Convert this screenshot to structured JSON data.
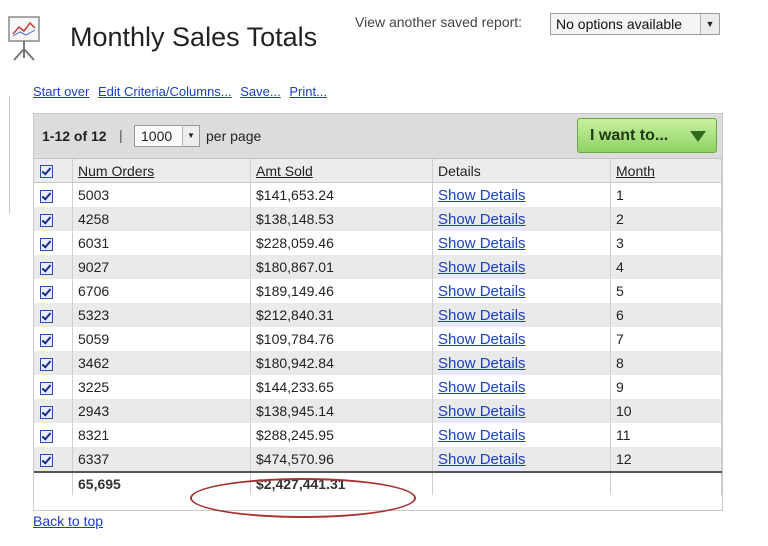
{
  "header": {
    "title": "Monthly Sales Totals",
    "saved_report_label": "View another saved report:",
    "saved_report_select": "No options available"
  },
  "actions": {
    "start_over": "Start over",
    "edit_criteria": "Edit Criteria/Columns...",
    "save": "Save...",
    "print": "Print..."
  },
  "toolbar": {
    "range": "1-12 of 12",
    "separator": "|",
    "per_page_value": "1000",
    "per_page_label": "per page",
    "i_want_to": "I want to..."
  },
  "table": {
    "columns": [
      "Num Orders",
      "Amt Sold",
      "Details",
      "Month"
    ],
    "rows": [
      {
        "orders": "5003",
        "amount": "$141,653.24",
        "details": "Show Details",
        "month": "1"
      },
      {
        "orders": "4258",
        "amount": "$138,148.53",
        "details": "Show Details",
        "month": "2"
      },
      {
        "orders": "6031",
        "amount": "$228,059.46",
        "details": "Show Details",
        "month": "3"
      },
      {
        "orders": "9027",
        "amount": "$180,867.01",
        "details": "Show Details",
        "month": "4"
      },
      {
        "orders": "6706",
        "amount": "$189,149.46",
        "details": "Show Details",
        "month": "5"
      },
      {
        "orders": "5323",
        "amount": "$212,840.31",
        "details": "Show Details",
        "month": "6"
      },
      {
        "orders": "5059",
        "amount": "$109,784.76",
        "details": "Show Details",
        "month": "7"
      },
      {
        "orders": "3462",
        "amount": "$180,942.84",
        "details": "Show Details",
        "month": "8"
      },
      {
        "orders": "3225",
        "amount": "$144,233.65",
        "details": "Show Details",
        "month": "9"
      },
      {
        "orders": "2943",
        "amount": "$138,945.14",
        "details": "Show Details",
        "month": "10"
      },
      {
        "orders": "8321",
        "amount": "$288,245.95",
        "details": "Show Details",
        "month": "11"
      },
      {
        "orders": "6337",
        "amount": "$474,570.96",
        "details": "Show Details",
        "month": "12"
      }
    ],
    "totals": {
      "orders": "65,695",
      "amount": "$2,427,441.31"
    }
  },
  "footer": {
    "back_to_top": "Back to top"
  },
  "colors": {
    "link": "#1a3fbf",
    "button_green": "#8fd265",
    "annotation_circle": "#a83232"
  }
}
